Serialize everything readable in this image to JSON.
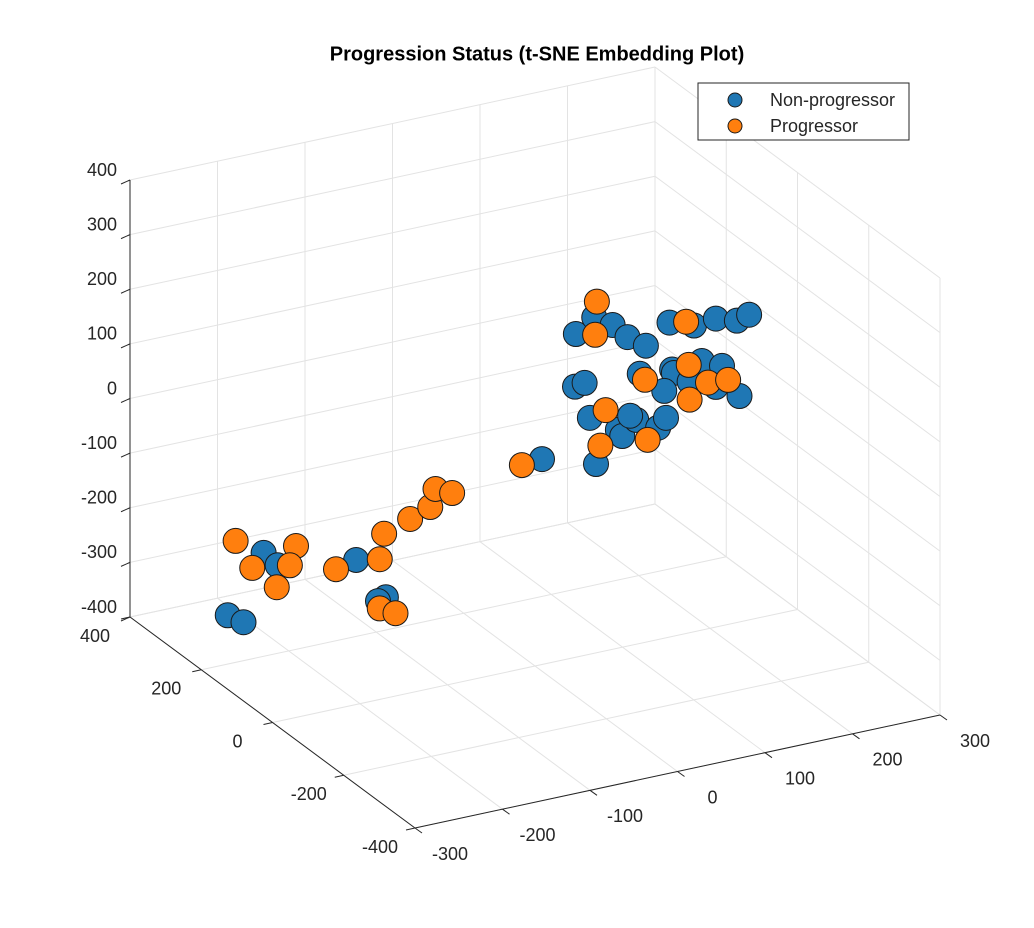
{
  "chart_data": {
    "type": "scatter3d",
    "title": "Progression Status (t-SNE Embedding Plot)",
    "xlim": [
      -300,
      300
    ],
    "xticks": [
      -300,
      -200,
      -100,
      0,
      100,
      200,
      300
    ],
    "ylim": [
      -400,
      400
    ],
    "yticks": [
      -400,
      -200,
      0,
      200,
      400
    ],
    "zlim": [
      -400,
      400
    ],
    "zticks": [
      -400,
      -300,
      -200,
      -100,
      0,
      100,
      200,
      300,
      400
    ],
    "grid": true,
    "legend": "upper right",
    "series": [
      {
        "name": "Non-progressor",
        "color": "#1f77b4",
        "x": [
          -188,
          -172,
          -229,
          -211,
          -123,
          -89,
          -98,
          8,
          6,
          27,
          48,
          65,
          86,
          113,
          141,
          166,
          190,
          204,
          5,
          16,
          22,
          29,
          79,
          116,
          150,
          173,
          118,
          136,
          107,
          166,
          193,
          54,
          59,
          75,
          68,
          100,
          109
        ],
        "y": [
          300,
          300,
          300,
          300,
          200,
          200,
          200,
          0,
          -100,
          -100,
          -100,
          -100,
          -100,
          -100,
          -100,
          -100,
          -100,
          -100,
          -100,
          -100,
          -100,
          -100,
          -100,
          -100,
          -100,
          -100,
          -100,
          -100,
          -100,
          -100,
          -100,
          -100,
          -100,
          -100,
          -100,
          -100,
          -100
        ],
        "z": [
          -273,
          -301,
          -373,
          -392,
          -260,
          -340,
          -344,
          -24,
          254,
          277,
          256,
          228,
          205,
          238,
          223,
          227,
          215,
          221,
          158,
          161,
          95,
          8,
          156,
          151,
          155,
          138,
          144,
          122,
          115,
          102,
          76,
          62,
          49,
          73,
          83,
          50,
          65
        ]
      },
      {
        "name": "Progressor",
        "color": "#ff7f0e",
        "x": [
          -220,
          -151,
          -201,
          -158,
          -173,
          -146,
          -96,
          -91,
          -96,
          -78,
          -102,
          -79,
          -73,
          -54,
          -15,
          30,
          28,
          85,
          132,
          135,
          136,
          157,
          180,
          40,
          34,
          88
        ],
        "y": [
          300,
          300,
          300,
          300,
          300,
          200,
          200,
          200,
          200,
          200,
          100,
          100,
          100,
          100,
          0,
          -100,
          -100,
          -100,
          -100,
          -100,
          -100,
          -100,
          -100,
          -100,
          -100,
          -100
        ],
        "z": [
          -240,
          -273,
          -296,
          -306,
          -341,
          -269,
          -268,
          -223,
          -358,
          -373,
          -144,
          -130,
          -99,
          -113,
          -27,
          305,
          245,
          143,
          233,
          153,
          89,
          113,
          110,
          103,
          40,
          32
        ]
      }
    ]
  }
}
